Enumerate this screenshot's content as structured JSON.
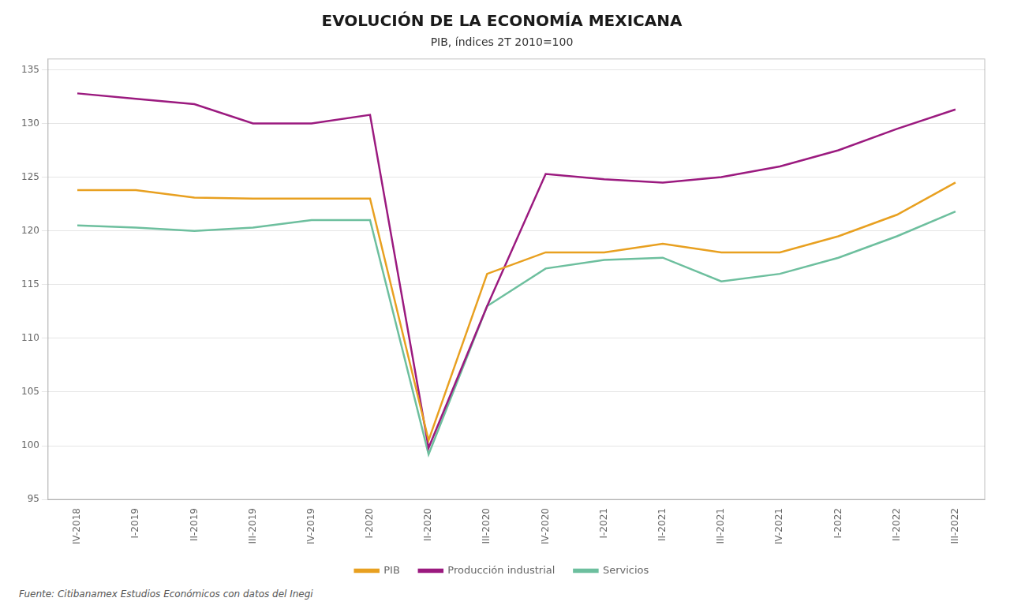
{
  "chart_data": {
    "type": "line",
    "title": "EVOLUCIÓN DE LA ECONOMÍA MEXICANA",
    "subtitle": "PIB, índices 2T 2010=100",
    "categories": [
      "IV-2018",
      "I-2019",
      "II-2019",
      "III-2019",
      "IV-2019",
      "I-2020",
      "II-2020",
      "III-2020",
      "IV-2020",
      "I-2021",
      "II-2021",
      "III-2021",
      "IV-2021",
      "I-2022",
      "II-2022",
      "III-2022"
    ],
    "series": [
      {
        "name": "PIB",
        "color": "#e8a020",
        "values": [
          123.8,
          123.8,
          123.1,
          123.0,
          123.0,
          123.0,
          100.5,
          116.0,
          118.0,
          118.0,
          118.8,
          118.0,
          118.0,
          119.5,
          121.5,
          124.5
        ]
      },
      {
        "name": "Producción industrial",
        "color": "#9b1a7f",
        "values": [
          132.8,
          132.3,
          131.8,
          130.0,
          130.0,
          130.8,
          99.8,
          113.0,
          125.3,
          124.8,
          124.5,
          125.0,
          126.0,
          127.5,
          129.5,
          131.3
        ]
      },
      {
        "name": "Servicios",
        "color": "#6dbf9e",
        "values": [
          120.5,
          120.3,
          120.0,
          120.3,
          121.0,
          121.0,
          99.2,
          113.0,
          116.5,
          117.3,
          117.5,
          115.3,
          116.0,
          117.5,
          119.5,
          121.8
        ]
      }
    ],
    "ylim": [
      95,
      136
    ],
    "yticks": [
      95,
      100,
      105,
      110,
      115,
      120,
      125,
      130,
      135
    ],
    "grid": true,
    "legend": "bottom",
    "annotations": [
      "Fuente: Citibanamex Estudios Económicos con datos del Inegi"
    ]
  }
}
